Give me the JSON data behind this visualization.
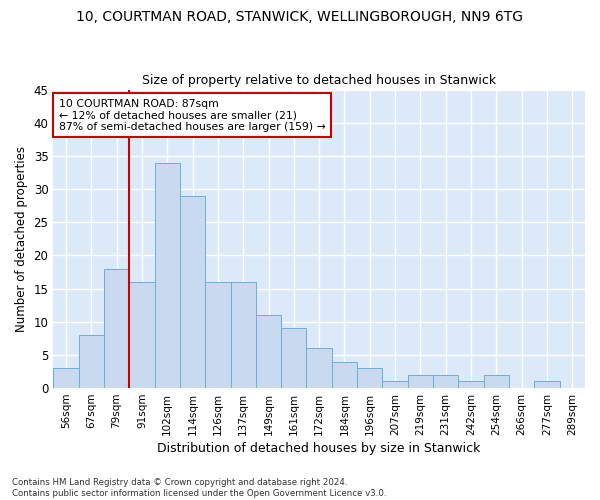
{
  "title_line1": "10, COURTMAN ROAD, STANWICK, WELLINGBOROUGH, NN9 6TG",
  "title_line2": "Size of property relative to detached houses in Stanwick",
  "xlabel": "Distribution of detached houses by size in Stanwick",
  "ylabel": "Number of detached properties",
  "bar_labels": [
    "56sqm",
    "67sqm",
    "79sqm",
    "91sqm",
    "102sqm",
    "114sqm",
    "126sqm",
    "137sqm",
    "149sqm",
    "161sqm",
    "172sqm",
    "184sqm",
    "196sqm",
    "207sqm",
    "219sqm",
    "231sqm",
    "242sqm",
    "254sqm",
    "266sqm",
    "277sqm",
    "289sqm"
  ],
  "bar_values": [
    3,
    8,
    18,
    16,
    34,
    29,
    16,
    16,
    11,
    9,
    6,
    4,
    3,
    1,
    2,
    2,
    1,
    2,
    0,
    1,
    0
  ],
  "bar_color": "#c9d9f0",
  "bar_edge_color": "#6baed6",
  "vline_x_index": 3,
  "vline_color": "#cc0000",
  "ylim": [
    0,
    45
  ],
  "yticks": [
    0,
    5,
    10,
    15,
    20,
    25,
    30,
    35,
    40,
    45
  ],
  "annotation_text": "10 COURTMAN ROAD: 87sqm\n← 12% of detached houses are smaller (21)\n87% of semi-detached houses are larger (159) →",
  "annotation_box_color": "#ffffff",
  "annotation_box_edge": "#cc0000",
  "footnote": "Contains HM Land Registry data © Crown copyright and database right 2024.\nContains public sector information licensed under the Open Government Licence v3.0.",
  "fig_bg_color": "#ffffff",
  "plot_bg_color": "#dce9f8",
  "grid_color": "#ffffff"
}
